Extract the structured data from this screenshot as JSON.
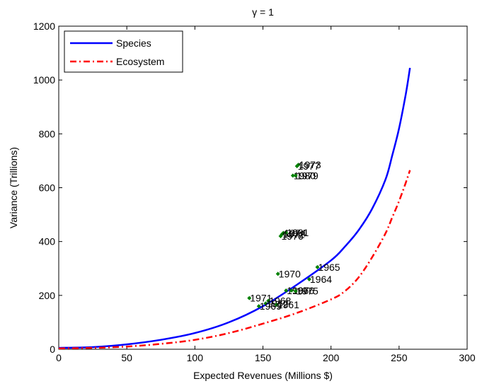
{
  "chart_data": {
    "type": "line",
    "title": "γ = 1",
    "xlabel": "Expected Revenues (Millions $)",
    "ylabel": "Variance (Trillions)",
    "xlim": [
      0,
      300
    ],
    "ylim": [
      0,
      1200
    ],
    "xticks": [
      0,
      50,
      100,
      150,
      200,
      250,
      300
    ],
    "yticks": [
      0,
      200,
      400,
      600,
      800,
      1000,
      1200
    ],
    "grid": false,
    "legend_position": "top-left",
    "series": [
      {
        "name": "Species",
        "color": "#0000ff",
        "style": "solid",
        "x": [
          0,
          25,
          50,
          75,
          100,
          125,
          150,
          175,
          200,
          210,
          220,
          230,
          240,
          245,
          250,
          255,
          258
        ],
        "y": [
          5,
          8,
          18,
          35,
          60,
          100,
          160,
          240,
          330,
          380,
          440,
          520,
          630,
          720,
          820,
          950,
          1045
        ]
      },
      {
        "name": "Ecosystem",
        "color": "#ff0000",
        "style": "dashdot",
        "x": [
          0,
          25,
          50,
          75,
          100,
          125,
          150,
          175,
          200,
          210,
          220,
          230,
          240,
          245,
          250,
          255,
          258
        ],
        "y": [
          3,
          5,
          10,
          20,
          35,
          60,
          95,
          135,
          185,
          215,
          265,
          340,
          430,
          490,
          550,
          620,
          665
        ]
      }
    ],
    "points": {
      "color": "#008000",
      "items": [
        {
          "x": 176,
          "y": 685,
          "label": "1973"
        },
        {
          "x": 175,
          "y": 680,
          "label": "1977"
        },
        {
          "x": 172,
          "y": 645,
          "label": "1980"
        },
        {
          "x": 174,
          "y": 645,
          "label": "1979"
        },
        {
          "x": 165,
          "y": 432,
          "label": "1974"
        },
        {
          "x": 167,
          "y": 433,
          "label": "1981"
        },
        {
          "x": 164,
          "y": 427,
          "label": "1972"
        },
        {
          "x": 163,
          "y": 420,
          "label": "1976"
        },
        {
          "x": 190,
          "y": 305,
          "label": "1965"
        },
        {
          "x": 161,
          "y": 280,
          "label": "1970"
        },
        {
          "x": 184,
          "y": 260,
          "label": "1964"
        },
        {
          "x": 167,
          "y": 218,
          "label": "1967"
        },
        {
          "x": 171,
          "y": 218,
          "label": "1966"
        },
        {
          "x": 174,
          "y": 216,
          "label": "1975"
        },
        {
          "x": 140,
          "y": 190,
          "label": "1971"
        },
        {
          "x": 154,
          "y": 180,
          "label": "1968"
        },
        {
          "x": 152,
          "y": 170,
          "label": "1962"
        },
        {
          "x": 160,
          "y": 165,
          "label": "1961"
        },
        {
          "x": 147,
          "y": 160,
          "label": "1969"
        }
      ]
    }
  }
}
